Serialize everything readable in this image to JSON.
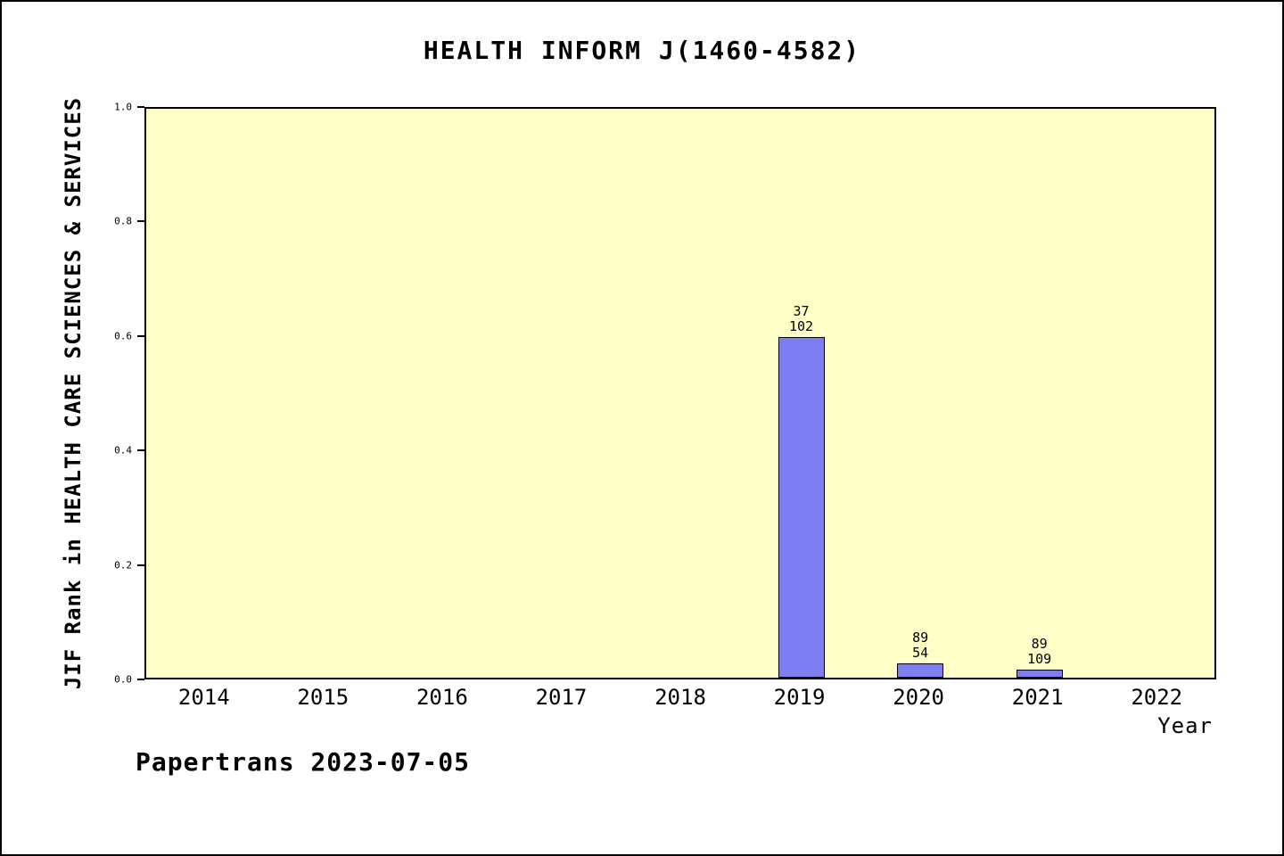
{
  "footer": "Papertrans 2023-07-05",
  "chart_data": {
    "type": "bar",
    "title": "HEALTH INFORM J(1460-4582)",
    "xlabel": "Year",
    "ylabel": "JIF Rank in HEALTH CARE SCIENCES & SERVICES",
    "categories": [
      "2014",
      "2015",
      "2016",
      "2017",
      "2018",
      "2019",
      "2020",
      "2021",
      "2022"
    ],
    "values": [
      0,
      0,
      0,
      0,
      0,
      0.595,
      0.025,
      0.014,
      0
    ],
    "annotations": [
      {
        "category": "2019",
        "lines": [
          "37",
          "102"
        ]
      },
      {
        "category": "2020",
        "lines": [
          "89",
          "54"
        ]
      },
      {
        "category": "2021",
        "lines": [
          "89",
          "109"
        ]
      }
    ],
    "ylim": [
      0,
      1
    ],
    "yticks": [
      0.0,
      0.2,
      0.4,
      0.6,
      0.8,
      1.0
    ],
    "grid": false,
    "legend": "none",
    "colors": {
      "bar": "#7e7ef0",
      "plot_background": "#ffffc8",
      "page_background": "#ffffff",
      "axis": "#000000"
    }
  }
}
